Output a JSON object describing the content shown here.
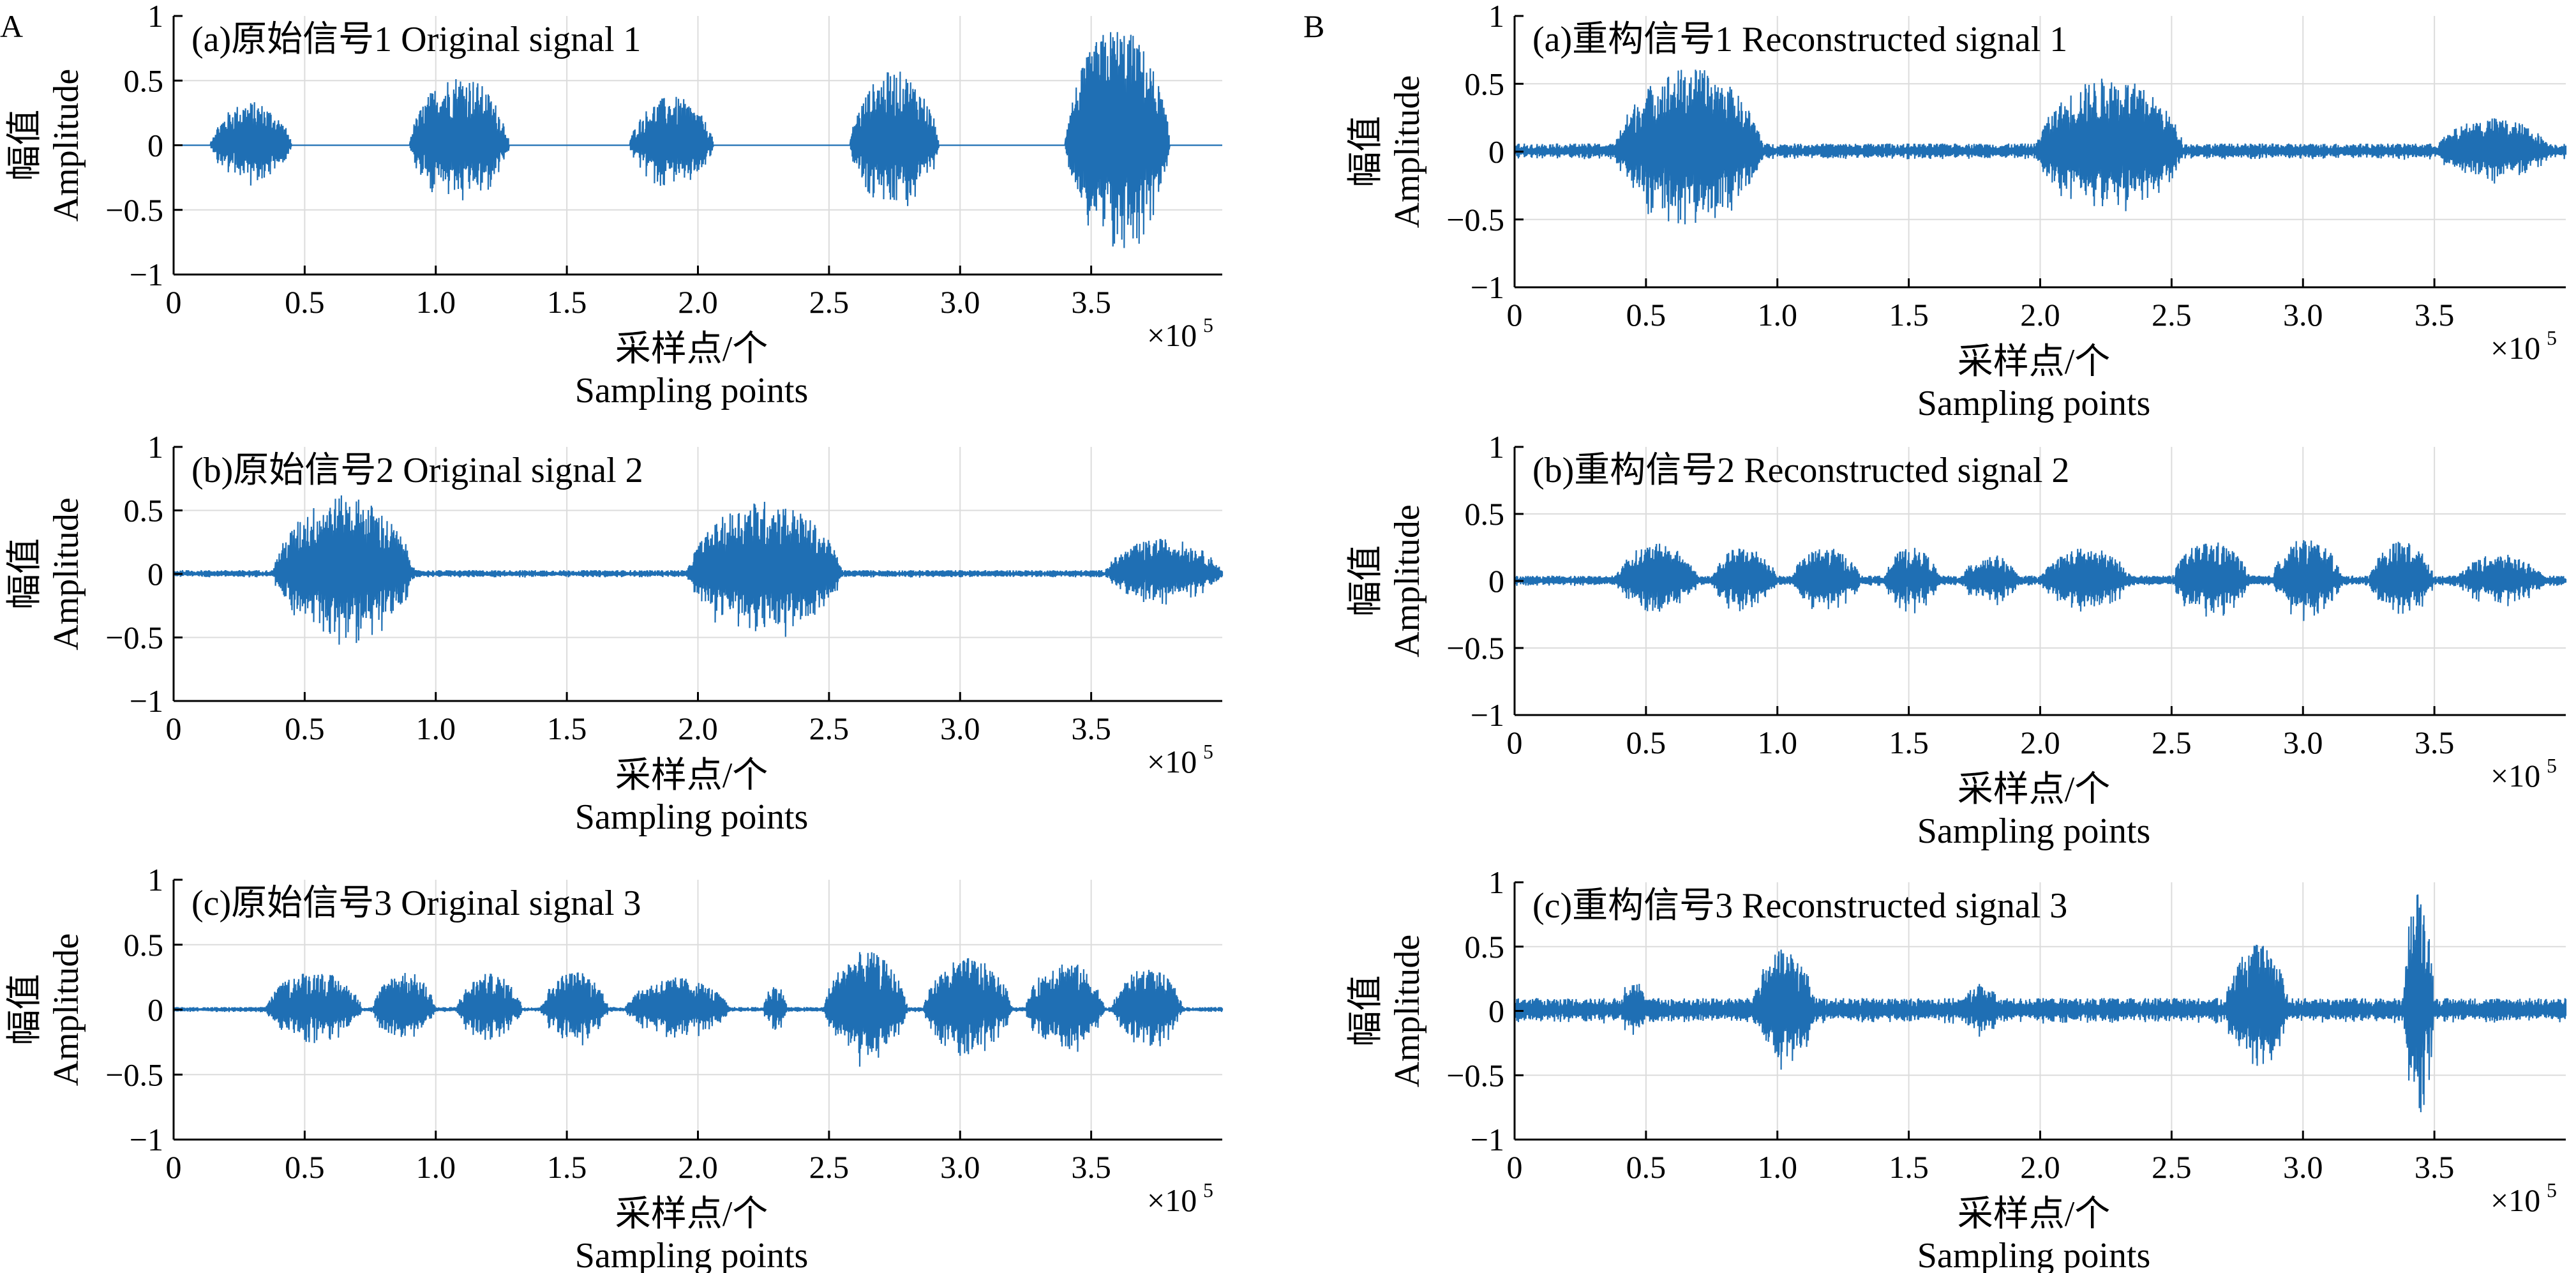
{
  "figure": {
    "panel_labels": [
      "A",
      "B"
    ],
    "signal_color": "#1f6fb4",
    "grid_color": "#dcdcdc"
  },
  "chart_data": [
    {
      "type": "line",
      "panel": "A",
      "title": "(a)原始信号1 Original signal 1",
      "ylabel_zh": "幅值",
      "ylabel_en": "Amplitude",
      "xlabel_zh": "采样点/个",
      "xlabel_en": "Sampling points",
      "x_multiplier": "×10",
      "x_multiplier_exp": "5",
      "xlim": [
        0,
        4.0
      ],
      "ylim": [
        -1,
        1
      ],
      "xticks": [
        0,
        0.5,
        1.0,
        1.5,
        2.0,
        2.5,
        3.0,
        3.5
      ],
      "xtick_labels": [
        "0",
        "0.5",
        "1.0",
        "1.5",
        "2.0",
        "2.5",
        "3.0",
        "3.5"
      ],
      "yticks": [
        -1,
        -0.5,
        0,
        0.5,
        1
      ],
      "ytick_labels": [
        "−1",
        "−0.5",
        "0",
        "0.5",
        "1"
      ],
      "grid": true,
      "bursts": [
        {
          "start": 0.14,
          "end": 0.45,
          "peak": 0.34
        },
        {
          "start": 0.9,
          "end": 1.28,
          "peak": 0.55
        },
        {
          "start": 1.74,
          "end": 2.06,
          "peak": 0.38
        },
        {
          "start": 2.58,
          "end": 2.92,
          "peak": 0.58
        },
        {
          "start": 3.4,
          "end": 3.8,
          "peak": 0.92
        }
      ],
      "noise_floor": 0.0
    },
    {
      "type": "line",
      "panel": "A",
      "title": "(b)原始信号2 Original signal 2",
      "ylabel_zh": "幅值",
      "ylabel_en": "Amplitude",
      "xlabel_zh": "采样点/个",
      "xlabel_en": "Sampling points",
      "x_multiplier": "×10",
      "x_multiplier_exp": "5",
      "xlim": [
        0,
        4.0
      ],
      "ylim": [
        -1,
        1
      ],
      "xticks": [
        0,
        0.5,
        1.0,
        1.5,
        2.0,
        2.5,
        3.0,
        3.5
      ],
      "xtick_labels": [
        "0",
        "0.5",
        "1.0",
        "1.5",
        "2.0",
        "2.5",
        "3.0",
        "3.5"
      ],
      "yticks": [
        -1,
        -0.5,
        0,
        0.5,
        1
      ],
      "ytick_labels": [
        "−1",
        "−0.5",
        "0",
        "0.5",
        "1"
      ],
      "grid": true,
      "bursts": [
        {
          "start": 0.38,
          "end": 0.92,
          "peak": 0.62
        },
        {
          "start": 1.96,
          "end": 2.55,
          "peak": 0.58
        },
        {
          "start": 3.55,
          "end": 4.0,
          "peak": 0.28
        }
      ],
      "noise_floor": 0.03
    },
    {
      "type": "line",
      "panel": "A",
      "title": "(c)原始信号3 Original signal 3",
      "ylabel_zh": "幅值",
      "ylabel_en": "Amplitude",
      "xlabel_zh": "采样点/个",
      "xlabel_en": "Sampling points",
      "x_multiplier": "×10",
      "x_multiplier_exp": "5",
      "xlim": [
        0,
        4.0
      ],
      "ylim": [
        -1,
        1
      ],
      "xticks": [
        0,
        0.5,
        1.0,
        1.5,
        2.0,
        2.5,
        3.0,
        3.5
      ],
      "xtick_labels": [
        "0",
        "0.5",
        "1.0",
        "1.5",
        "2.0",
        "2.5",
        "3.0",
        "3.5"
      ],
      "yticks": [
        -1,
        -0.5,
        0,
        0.5,
        1
      ],
      "ytick_labels": [
        "−1",
        "−0.5",
        "0",
        "0.5",
        "1"
      ],
      "grid": true,
      "bursts": [
        {
          "start": 0.35,
          "end": 0.72,
          "peak": 0.3
        },
        {
          "start": 0.76,
          "end": 1.0,
          "peak": 0.3
        },
        {
          "start": 1.08,
          "end": 1.33,
          "peak": 0.28
        },
        {
          "start": 1.4,
          "end": 1.66,
          "peak": 0.3
        },
        {
          "start": 1.72,
          "end": 2.12,
          "peak": 0.25
        },
        {
          "start": 2.25,
          "end": 2.34,
          "peak": 0.2
        },
        {
          "start": 2.48,
          "end": 2.8,
          "peak": 0.45
        },
        {
          "start": 2.86,
          "end": 3.2,
          "peak": 0.4
        },
        {
          "start": 3.25,
          "end": 3.55,
          "peak": 0.38
        },
        {
          "start": 3.58,
          "end": 3.85,
          "peak": 0.32
        }
      ],
      "noise_floor": 0.02
    },
    {
      "type": "line",
      "panel": "B",
      "title": "(a)重构信号1 Reconstructed signal 1",
      "ylabel_zh": "幅值",
      "ylabel_en": "Amplitude",
      "xlabel_zh": "采样点/个",
      "xlabel_en": "Sampling points",
      "x_multiplier": "×10",
      "x_multiplier_exp": "5",
      "xlim": [
        0,
        4.0
      ],
      "ylim": [
        -1,
        1
      ],
      "xticks": [
        0,
        0.5,
        1.0,
        1.5,
        2.0,
        2.5,
        3.0,
        3.5
      ],
      "xtick_labels": [
        "0",
        "0.5",
        "1.0",
        "1.5",
        "2.0",
        "2.5",
        "3.0",
        "3.5"
      ],
      "yticks": [
        -1,
        -0.5,
        0,
        0.5,
        1
      ],
      "ytick_labels": [
        "−1",
        "−0.5",
        "0",
        "0.5",
        "1"
      ],
      "grid": true,
      "bursts": [
        {
          "start": 0.38,
          "end": 0.95,
          "peak": 0.62
        },
        {
          "start": 1.98,
          "end": 2.55,
          "peak": 0.55
        },
        {
          "start": 3.5,
          "end": 3.95,
          "peak": 0.25
        }
      ],
      "noise_floor": 0.06
    },
    {
      "type": "line",
      "panel": "B",
      "title": "(b)重构信号2 Reconstructed signal 2",
      "ylabel_zh": "幅值",
      "ylabel_en": "Amplitude",
      "xlabel_zh": "采样点/个",
      "xlabel_en": "Sampling points",
      "x_multiplier": "×10",
      "x_multiplier_exp": "5",
      "xlim": [
        0,
        4.0
      ],
      "ylim": [
        -1,
        1
      ],
      "xticks": [
        0,
        0.5,
        1.0,
        1.5,
        2.0,
        2.5,
        3.0,
        3.5
      ],
      "xtick_labels": [
        "0",
        "0.5",
        "1.0",
        "1.5",
        "2.0",
        "2.5",
        "3.0",
        "3.5"
      ],
      "yticks": [
        -1,
        -0.5,
        0,
        0.5,
        1
      ],
      "ytick_labels": [
        "−1",
        "−0.5",
        "0",
        "0.5",
        "1"
      ],
      "grid": true,
      "bursts": [
        {
          "start": 0.38,
          "end": 0.7,
          "peak": 0.28
        },
        {
          "start": 0.75,
          "end": 1.0,
          "peak": 0.26
        },
        {
          "start": 1.05,
          "end": 1.32,
          "peak": 0.25
        },
        {
          "start": 1.4,
          "end": 1.62,
          "peak": 0.25
        },
        {
          "start": 1.7,
          "end": 1.92,
          "peak": 0.2
        },
        {
          "start": 2.0,
          "end": 2.35,
          "peak": 0.25
        },
        {
          "start": 2.5,
          "end": 2.8,
          "peak": 0.3
        },
        {
          "start": 2.88,
          "end": 3.15,
          "peak": 0.32
        },
        {
          "start": 3.25,
          "end": 3.5,
          "peak": 0.3
        },
        {
          "start": 3.58,
          "end": 3.92,
          "peak": 0.2
        }
      ],
      "noise_floor": 0.04
    },
    {
      "type": "line",
      "panel": "B",
      "title": "(c)重构信号3 Reconstructed signal 3",
      "ylabel_zh": "幅值",
      "ylabel_en": "Amplitude",
      "xlabel_zh": "采样点/个",
      "xlabel_en": "Sampling points",
      "x_multiplier": "×10",
      "x_multiplier_exp": "5",
      "xlim": [
        0,
        4.0
      ],
      "ylim": [
        -1,
        1
      ],
      "xticks": [
        0,
        0.5,
        1.0,
        1.5,
        2.0,
        2.5,
        3.0,
        3.5
      ],
      "xtick_labels": [
        "0",
        "0.5",
        "1.0",
        "1.5",
        "2.0",
        "2.5",
        "3.0",
        "3.5"
      ],
      "yticks": [
        -1,
        -0.5,
        0,
        0.5,
        1
      ],
      "ytick_labels": [
        "−1",
        "−0.5",
        "0",
        "0.5",
        "1"
      ],
      "grid": true,
      "bursts": [
        {
          "start": 0.4,
          "end": 0.5,
          "peak": 0.28
        },
        {
          "start": 0.9,
          "end": 1.15,
          "peak": 0.48
        },
        {
          "start": 1.7,
          "end": 1.85,
          "peak": 0.22
        },
        {
          "start": 2.7,
          "end": 2.95,
          "peak": 0.52
        },
        {
          "start": 3.38,
          "end": 3.5,
          "peak": 0.95
        }
      ],
      "noise_floor": 0.1
    }
  ]
}
